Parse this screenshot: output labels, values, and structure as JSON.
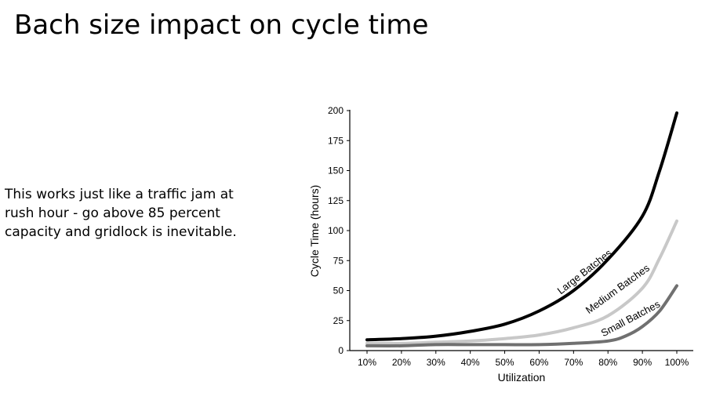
{
  "slide": {
    "title": "Bach size impact on cycle time",
    "body": "This works just like a traffic jam at\nrush hour - go above 85 percent\ncapacity and gridlock is inevitable."
  },
  "chart_data": {
    "type": "line",
    "xlabel": "Utilization",
    "ylabel": "Cycle Time (hours)",
    "categories": [
      "10%",
      "20%",
      "30%",
      "40%",
      "50%",
      "60%",
      "70%",
      "80%",
      "90%",
      "100%"
    ],
    "x": [
      10,
      20,
      30,
      40,
      50,
      60,
      70,
      80,
      90,
      100
    ],
    "xlim": [
      10,
      100
    ],
    "yticks": [
      0,
      25,
      50,
      75,
      100,
      125,
      150,
      175,
      200
    ],
    "ylim": [
      0,
      200
    ],
    "grid": false,
    "series": [
      {
        "name": "Large Batches",
        "color": "#000000",
        "x": [
          10,
          20,
          30,
          40,
          50,
          60,
          70,
          80,
          90,
          95,
          100
        ],
        "values": [
          9,
          10,
          12,
          16,
          22,
          33,
          50,
          76,
          112,
          150,
          198
        ]
      },
      {
        "name": "Medium Batches",
        "color": "#c8c8c8",
        "x": [
          10,
          20,
          30,
          40,
          50,
          60,
          70,
          80,
          90,
          95,
          100
        ],
        "values": [
          6,
          6,
          7,
          8,
          10,
          13,
          19,
          29,
          52,
          77,
          108
        ]
      },
      {
        "name": "Small Batches",
        "color": "#707070",
        "x": [
          10,
          20,
          30,
          40,
          50,
          60,
          70,
          80,
          85,
          90,
          95,
          100
        ],
        "values": [
          4,
          4,
          5,
          5,
          5,
          5,
          6,
          8,
          12,
          20,
          33,
          54
        ]
      }
    ]
  }
}
